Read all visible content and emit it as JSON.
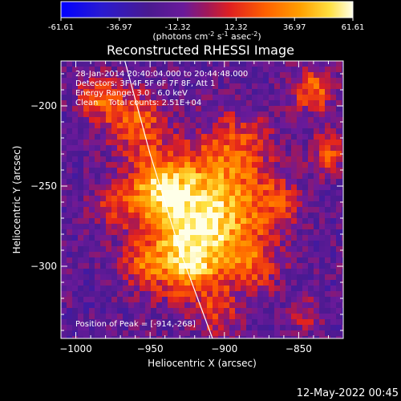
{
  "colorbar": {
    "ticks": [
      "-61.61",
      "-36.97",
      "-12.32",
      "12.32",
      "36.97",
      "61.61"
    ],
    "tick_values": [
      -61.61,
      -36.97,
      -12.32,
      12.32,
      36.97,
      61.61
    ],
    "min": -61.61,
    "max": 61.61,
    "unit_label": "(photons cm",
    "unit_exp1": "-2",
    "unit_mid1": " s",
    "unit_exp2": "-1",
    "unit_mid2": " asec",
    "unit_exp3": "-2",
    "unit_end": ")",
    "colors": [
      "#0000ff",
      "#3a1aa0",
      "#5a1a78",
      "#8a1aa0",
      "#c8185a",
      "#ff3000",
      "#ff9000",
      "#ffd000",
      "#ffffe0"
    ]
  },
  "title": "Reconstructed RHESSI Image",
  "info_lines": [
    "28-Jan-2014 20:40:04.000 to 20:44:48.000",
    "Detectors: 3F 4F 5F 6F 7F 8F, Att 1",
    "Energy Range: 3.0 - 6.0 keV",
    "Clean    Total counts: 2.51E+04"
  ],
  "peak_label": "Position of Peak = [-914,-268]",
  "footer_date": "12-May-2022 00:45",
  "chart_data": {
    "type": "heatmap",
    "title": "Reconstructed RHESSI Image",
    "xlabel": "Heliocentric X (arcsec)",
    "ylabel": "Heliocentric Y (arcsec)",
    "xlim": [
      -1010,
      -820
    ],
    "ylim": [
      -345,
      -172
    ],
    "x_ticks": [
      -1000,
      -950,
      -900,
      -850
    ],
    "y_ticks": [
      -200,
      -250,
      -300
    ],
    "x_tick_labels": [
      "−1000",
      "−950",
      "−900",
      "−850"
    ],
    "y_tick_labels": [
      "−200",
      "−250",
      "−300"
    ],
    "peak": {
      "x": -914,
      "y": -268
    },
    "limb_curve": [
      [
        -967,
        -172
      ],
      [
        -950,
        -230
      ],
      [
        -930,
        -290
      ],
      [
        -908,
        -345
      ]
    ],
    "grid": false
  }
}
